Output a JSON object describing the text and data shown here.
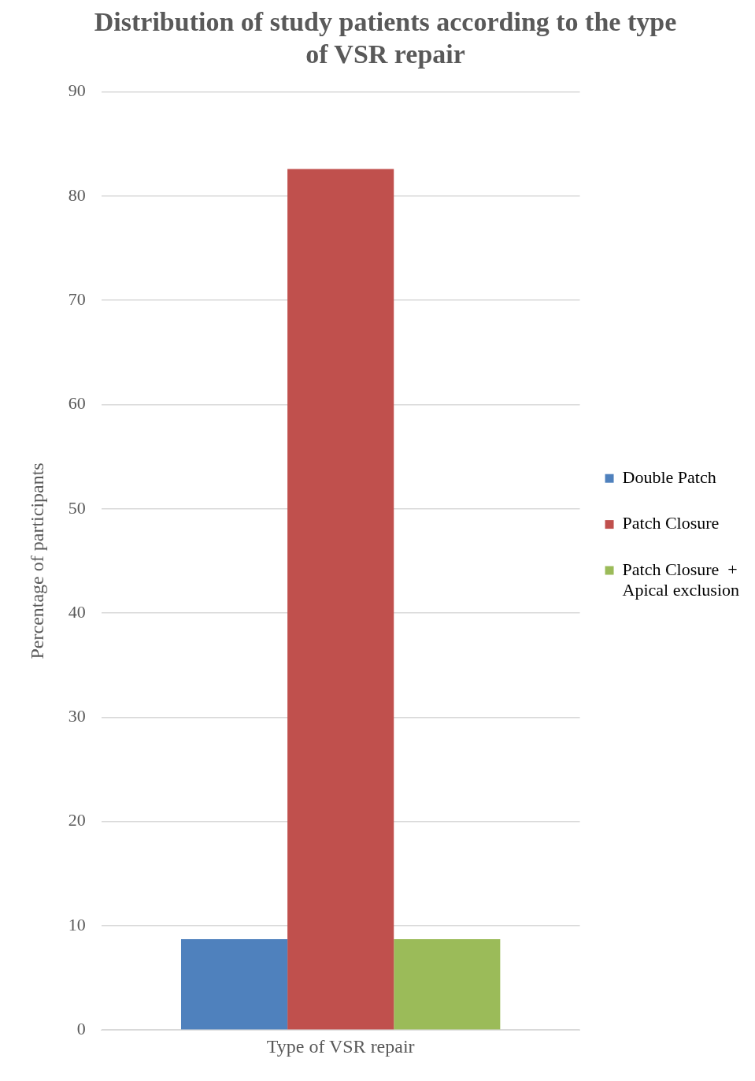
{
  "chart_data": {
    "type": "bar",
    "title": "Distribution of study patients according to the type of VSR repair",
    "ylabel": "Percentage of participants",
    "categories": [
      "Type of VSR repair"
    ],
    "series": [
      {
        "name": "Double Patch",
        "color": "#4f81bd",
        "values": [
          8.7
        ]
      },
      {
        "name": "Patch Closure",
        "color": "#c0504d",
        "values": [
          82.6
        ]
      },
      {
        "name": "Patch Closure  + Apical exclusion",
        "color": "#9bbb59",
        "values": [
          8.7
        ]
      }
    ],
    "ylim": [
      0,
      90
    ],
    "yticks": [
      0,
      10,
      20,
      30,
      40,
      50,
      60,
      70,
      80,
      90
    ],
    "grid": "y",
    "legend": "right"
  }
}
